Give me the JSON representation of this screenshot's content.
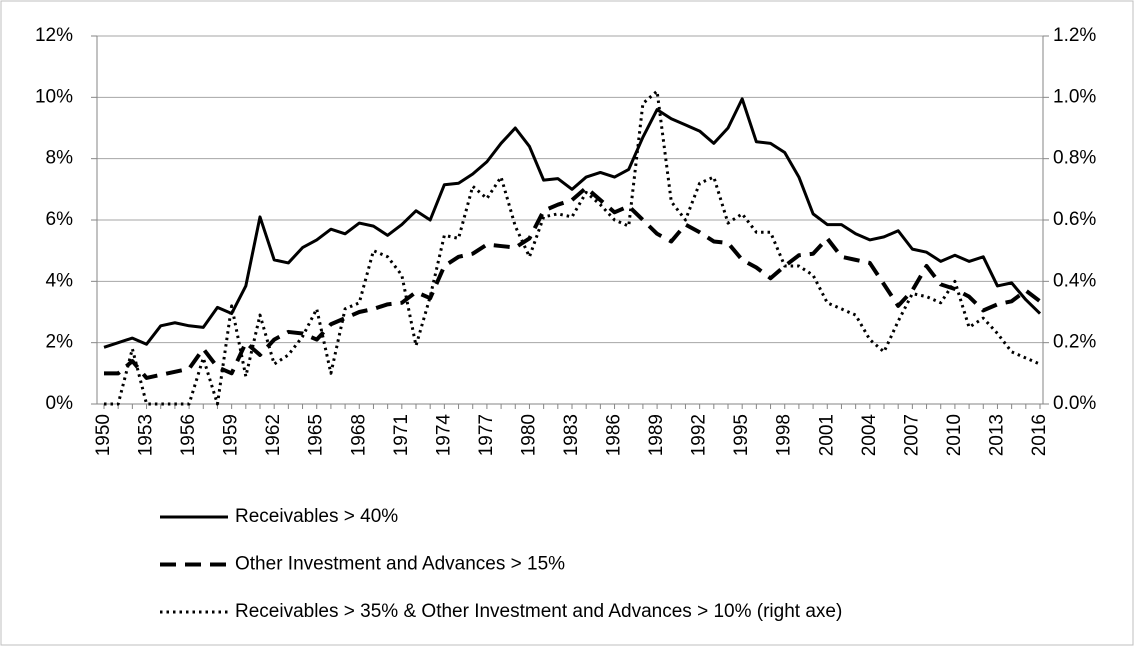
{
  "chart_data": {
    "type": "line",
    "categories": [
      "1950",
      null,
      null,
      "1953",
      null,
      null,
      "1956",
      null,
      null,
      "1959",
      null,
      null,
      "1962",
      null,
      null,
      "1965",
      null,
      null,
      "1968",
      null,
      null,
      "1971",
      null,
      null,
      "1974",
      null,
      null,
      "1977",
      null,
      null,
      "1980",
      null,
      null,
      "1983",
      null,
      null,
      "1986",
      null,
      null,
      "1989",
      null,
      null,
      "1992",
      null,
      null,
      "1995",
      null,
      null,
      "1998",
      null,
      null,
      "2001",
      null,
      null,
      "2004",
      null,
      null,
      "2007",
      null,
      null,
      "2010",
      null,
      null,
      "2013",
      null,
      null,
      "2016"
    ],
    "series": [
      {
        "name": "Receivables > 40%",
        "color": "#000000",
        "style": "solid",
        "axis": "y",
        "values": [
          1.85,
          2.0,
          2.15,
          1.95,
          2.55,
          2.65,
          2.55,
          2.5,
          3.15,
          2.95,
          3.85,
          6.1,
          4.7,
          4.6,
          5.1,
          5.35,
          5.7,
          5.55,
          5.9,
          5.8,
          5.5,
          5.85,
          6.3,
          6.0,
          7.15,
          7.2,
          7.5,
          7.9,
          8.5,
          9.0,
          8.4,
          7.3,
          7.35,
          7.0,
          7.4,
          7.55,
          7.4,
          7.65,
          8.7,
          9.6,
          9.3,
          9.1,
          8.9,
          8.5,
          9.0,
          9.95,
          8.55,
          8.5,
          8.2,
          7.4,
          6.2,
          5.85,
          5.85,
          5.55,
          5.35,
          5.45,
          5.65,
          5.05,
          4.95,
          4.65,
          4.85,
          4.65,
          4.8,
          3.85,
          3.95,
          3.4,
          2.95
        ]
      },
      {
        "name": "Other Investment and Advances > 15%",
        "color": "#000000",
        "style": "dashed",
        "axis": "y",
        "values": [
          1.0,
          1.0,
          1.4,
          0.85,
          0.95,
          1.05,
          1.15,
          1.8,
          1.2,
          1.0,
          2.0,
          1.6,
          2.1,
          2.35,
          2.3,
          2.1,
          2.6,
          2.8,
          3.0,
          3.1,
          3.25,
          3.3,
          3.65,
          3.45,
          4.5,
          4.8,
          4.9,
          5.2,
          5.15,
          5.1,
          5.4,
          6.3,
          6.5,
          6.65,
          7.05,
          6.65,
          6.25,
          6.45,
          6.0,
          5.55,
          5.3,
          5.85,
          5.6,
          5.3,
          5.25,
          4.7,
          4.45,
          4.1,
          4.5,
          4.85,
          4.9,
          5.4,
          4.8,
          4.7,
          4.6,
          3.9,
          3.2,
          3.7,
          4.5,
          3.9,
          3.75,
          3.5,
          3.05,
          3.25,
          3.35,
          3.7,
          3.35
        ]
      },
      {
        "name": "Receivables > 35% & Other Investment and Advances > 10% (right axe)",
        "color": "#000000",
        "style": "dotted",
        "axis": "y2",
        "values": [
          0.0,
          0.0,
          0.18,
          0.0,
          0.0,
          0.0,
          0.0,
          0.15,
          0.0,
          0.32,
          0.09,
          0.29,
          0.13,
          0.16,
          0.22,
          0.31,
          0.1,
          0.31,
          0.33,
          0.5,
          0.48,
          0.42,
          0.19,
          0.35,
          0.55,
          0.54,
          0.71,
          0.67,
          0.74,
          0.58,
          0.48,
          0.61,
          0.62,
          0.61,
          0.69,
          0.65,
          0.6,
          0.58,
          0.98,
          1.02,
          0.66,
          0.6,
          0.72,
          0.74,
          0.59,
          0.62,
          0.56,
          0.56,
          0.45,
          0.45,
          0.42,
          0.33,
          0.31,
          0.29,
          0.21,
          0.17,
          0.27,
          0.36,
          0.35,
          0.33,
          0.4,
          0.25,
          0.28,
          0.23,
          0.17,
          0.15,
          0.13
        ]
      }
    ],
    "ylim": [
      0,
      12
    ],
    "yticks": [
      {
        "value": 0,
        "label": "0%"
      },
      {
        "value": 2,
        "label": "2%"
      },
      {
        "value": 4,
        "label": "4%"
      },
      {
        "value": 6,
        "label": "6%"
      },
      {
        "value": 8,
        "label": "8%"
      },
      {
        "value": 10,
        "label": "10%"
      },
      {
        "value": 12,
        "label": "12%"
      }
    ],
    "y2lim": [
      0,
      1.2
    ],
    "y2ticks": [
      {
        "value": 0,
        "label": "0.0%"
      },
      {
        "value": 0.2,
        "label": "0.2%"
      },
      {
        "value": 0.4,
        "label": "0.4%"
      },
      {
        "value": 0.6,
        "label": "0.6%"
      },
      {
        "value": 0.8,
        "label": "0.8%"
      },
      {
        "value": 1.0,
        "label": "1.0%"
      },
      {
        "value": 1.2,
        "label": "1.2%"
      }
    ],
    "grid": true,
    "legend": "bottom"
  }
}
